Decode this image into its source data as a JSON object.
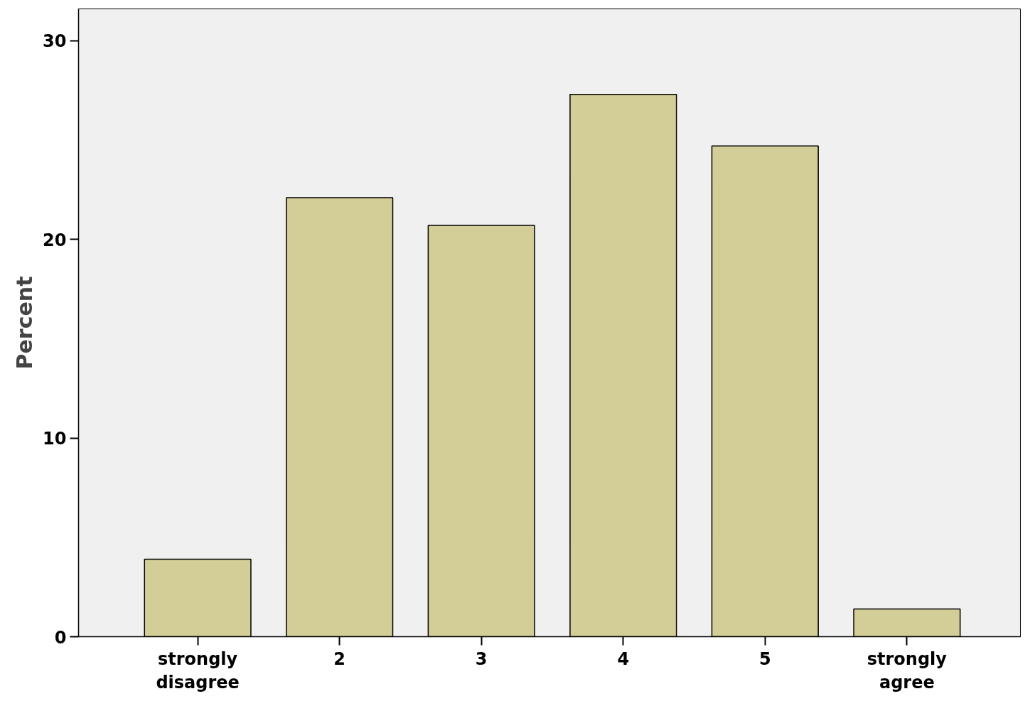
{
  "chart_data": {
    "type": "bar",
    "ylabel": "Percent",
    "categories": [
      "strongly disagree",
      "2",
      "3",
      "4",
      "5",
      "strongly agree"
    ],
    "values": [
      3.9,
      22.1,
      20.7,
      27.3,
      24.7,
      1.4
    ],
    "color": "#d3ce97",
    "ylim": [
      0,
      31.6
    ],
    "yticks": [
      0,
      10,
      20,
      30
    ],
    "grid": false
  }
}
